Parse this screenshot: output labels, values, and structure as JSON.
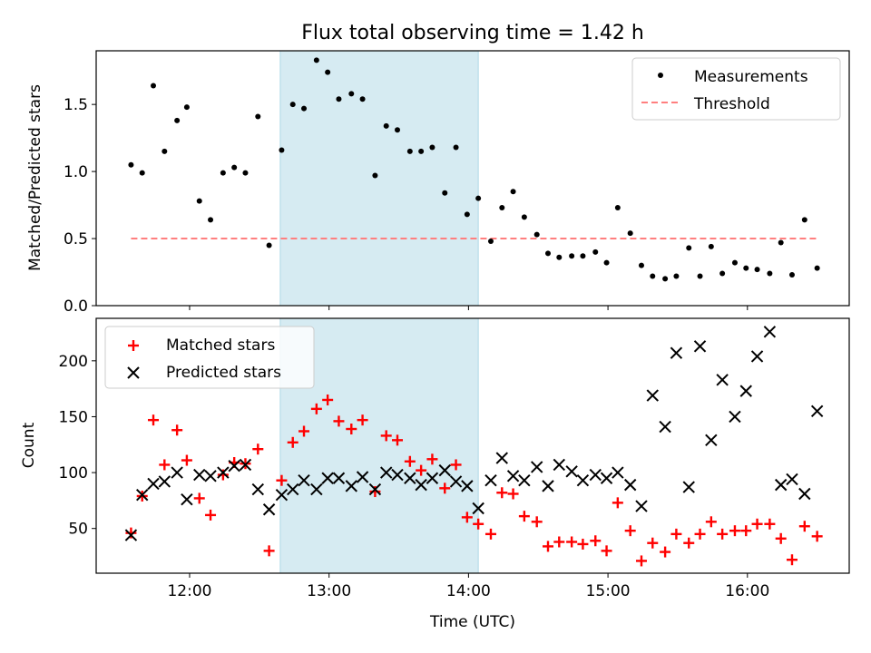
{
  "figure": {
    "title": "Flux total observing time = 1.42 h",
    "xlabel": "Time (UTC)"
  },
  "colors": {
    "shade": "#add8e6",
    "measurements": "#000000",
    "threshold": "#ff7f7f",
    "matched": "#ff0000",
    "predicted": "#000000"
  },
  "chart_data": [
    {
      "type": "scatter",
      "ylabel": "Matched/Predicted stars",
      "x_unit": "hours UTC",
      "xlim": [
        11.33,
        16.73
      ],
      "ylim": [
        0,
        1.9
      ],
      "yticks": [
        0.0,
        0.5,
        1.0,
        1.5
      ],
      "ytick_labels": [
        "0.0",
        "0.5",
        "1.0",
        "1.5"
      ],
      "xticks": [
        12,
        13,
        14,
        15,
        16
      ],
      "xtick_labels": [
        "",
        "",
        "",
        "",
        ""
      ],
      "shaded_span": [
        12.65,
        14.07
      ],
      "legend": {
        "placement": "upper right",
        "entries": [
          {
            "label": "Measurements",
            "marker": "dot"
          },
          {
            "label": "Threshold",
            "marker": "dashed-line"
          }
        ]
      },
      "threshold": {
        "y": 0.5,
        "x": [
          11.58,
          16.5
        ]
      },
      "series": [
        {
          "name": "Measurements",
          "points": [
            [
              11.58,
              1.05
            ],
            [
              11.66,
              0.99
            ],
            [
              11.74,
              1.64
            ],
            [
              11.82,
              1.15
            ],
            [
              11.91,
              1.38
            ],
            [
              11.98,
              1.48
            ],
            [
              12.07,
              0.78
            ],
            [
              12.15,
              0.64
            ],
            [
              12.24,
              0.99
            ],
            [
              12.32,
              1.03
            ],
            [
              12.4,
              0.99
            ],
            [
              12.49,
              1.41
            ],
            [
              12.57,
              0.45
            ],
            [
              12.66,
              1.16
            ],
            [
              12.74,
              1.5
            ],
            [
              12.82,
              1.47
            ],
            [
              12.91,
              1.83
            ],
            [
              12.99,
              1.74
            ],
            [
              13.07,
              1.54
            ],
            [
              13.16,
              1.58
            ],
            [
              13.24,
              1.54
            ],
            [
              13.33,
              0.97
            ],
            [
              13.41,
              1.34
            ],
            [
              13.49,
              1.31
            ],
            [
              13.58,
              1.15
            ],
            [
              13.66,
              1.15
            ],
            [
              13.74,
              1.18
            ],
            [
              13.83,
              0.84
            ],
            [
              13.91,
              1.18
            ],
            [
              13.99,
              0.68
            ],
            [
              14.07,
              0.8
            ],
            [
              14.16,
              0.48
            ],
            [
              14.24,
              0.73
            ],
            [
              14.32,
              0.85
            ],
            [
              14.4,
              0.66
            ],
            [
              14.49,
              0.53
            ],
            [
              14.57,
              0.39
            ],
            [
              14.65,
              0.36
            ],
            [
              14.74,
              0.37
            ],
            [
              14.82,
              0.37
            ],
            [
              14.91,
              0.4
            ],
            [
              14.99,
              0.32
            ],
            [
              15.07,
              0.73
            ],
            [
              15.16,
              0.54
            ],
            [
              15.24,
              0.3
            ],
            [
              15.32,
              0.22
            ],
            [
              15.41,
              0.2
            ],
            [
              15.49,
              0.22
            ],
            [
              15.58,
              0.43
            ],
            [
              15.66,
              0.22
            ],
            [
              15.74,
              0.44
            ],
            [
              15.82,
              0.24
            ],
            [
              15.91,
              0.32
            ],
            [
              15.99,
              0.28
            ],
            [
              16.07,
              0.27
            ],
            [
              16.16,
              0.24
            ],
            [
              16.24,
              0.47
            ],
            [
              16.32,
              0.23
            ],
            [
              16.41,
              0.64
            ],
            [
              16.5,
              0.28
            ]
          ]
        }
      ]
    },
    {
      "type": "scatter",
      "ylabel": "Count",
      "x_unit": "hours UTC",
      "xlim": [
        11.33,
        16.73
      ],
      "ylim": [
        10,
        238
      ],
      "yticks": [
        50,
        100,
        150,
        200
      ],
      "ytick_labels": [
        "50",
        "100",
        "150",
        "200"
      ],
      "xticks": [
        12,
        13,
        14,
        15,
        16
      ],
      "xtick_labels": [
        "12:00",
        "13:00",
        "14:00",
        "15:00",
        "16:00"
      ],
      "shaded_span": [
        12.65,
        14.07
      ],
      "legend": {
        "placement": "upper left",
        "entries": [
          {
            "label": "Matched stars",
            "marker": "plus"
          },
          {
            "label": "Predicted stars",
            "marker": "x"
          }
        ]
      },
      "series": [
        {
          "name": "Matched stars",
          "points": [
            [
              11.58,
              46
            ],
            [
              11.66,
              79
            ],
            [
              11.74,
              147
            ],
            [
              11.82,
              107
            ],
            [
              11.91,
              138
            ],
            [
              11.98,
              111
            ],
            [
              12.07,
              77
            ],
            [
              12.15,
              62
            ],
            [
              12.24,
              98
            ],
            [
              12.32,
              109
            ],
            [
              12.4,
              108
            ],
            [
              12.49,
              121
            ],
            [
              12.57,
              30
            ],
            [
              12.66,
              93
            ],
            [
              12.74,
              127
            ],
            [
              12.82,
              137
            ],
            [
              12.91,
              157
            ],
            [
              12.99,
              165
            ],
            [
              13.07,
              146
            ],
            [
              13.16,
              139
            ],
            [
              13.24,
              147
            ],
            [
              13.33,
              83
            ],
            [
              13.41,
              133
            ],
            [
              13.49,
              129
            ],
            [
              13.58,
              110
            ],
            [
              13.66,
              102
            ],
            [
              13.74,
              112
            ],
            [
              13.83,
              86
            ],
            [
              13.91,
              107
            ],
            [
              13.99,
              60
            ],
            [
              14.07,
              54
            ],
            [
              14.16,
              45
            ],
            [
              14.24,
              82
            ],
            [
              14.32,
              81
            ],
            [
              14.4,
              61
            ],
            [
              14.49,
              56
            ],
            [
              14.57,
              34
            ],
            [
              14.65,
              38
            ],
            [
              14.74,
              38
            ],
            [
              14.82,
              36
            ],
            [
              14.91,
              39
            ],
            [
              14.99,
              30
            ],
            [
              15.07,
              73
            ],
            [
              15.16,
              48
            ],
            [
              15.24,
              21
            ],
            [
              15.32,
              37
            ],
            [
              15.41,
              29
            ],
            [
              15.49,
              45
            ],
            [
              15.58,
              37
            ],
            [
              15.66,
              45
            ],
            [
              15.74,
              56
            ],
            [
              15.82,
              45
            ],
            [
              15.91,
              48
            ],
            [
              15.99,
              48
            ],
            [
              16.07,
              54
            ],
            [
              16.16,
              54
            ],
            [
              16.24,
              41
            ],
            [
              16.32,
              22
            ],
            [
              16.41,
              52
            ],
            [
              16.5,
              43
            ]
          ]
        },
        {
          "name": "Predicted stars",
          "points": [
            [
              11.58,
              44
            ],
            [
              11.66,
              80
            ],
            [
              11.74,
              90
            ],
            [
              11.82,
              92
            ],
            [
              11.91,
              100
            ],
            [
              11.98,
              76
            ],
            [
              12.07,
              98
            ],
            [
              12.15,
              97
            ],
            [
              12.24,
              100
            ],
            [
              12.32,
              106
            ],
            [
              12.4,
              107
            ],
            [
              12.49,
              85
            ],
            [
              12.57,
              67
            ],
            [
              12.66,
              80
            ],
            [
              12.74,
              85
            ],
            [
              12.82,
              93
            ],
            [
              12.91,
              85
            ],
            [
              12.99,
              95
            ],
            [
              13.07,
              95
            ],
            [
              13.16,
              88
            ],
            [
              13.24,
              96
            ],
            [
              13.33,
              85
            ],
            [
              13.41,
              100
            ],
            [
              13.49,
              98
            ],
            [
              13.58,
              95
            ],
            [
              13.66,
              89
            ],
            [
              13.74,
              95
            ],
            [
              13.83,
              102
            ],
            [
              13.91,
              92
            ],
            [
              13.99,
              88
            ],
            [
              14.07,
              68
            ],
            [
              14.16,
              93
            ],
            [
              14.24,
              113
            ],
            [
              14.32,
              97
            ],
            [
              14.4,
              93
            ],
            [
              14.49,
              105
            ],
            [
              14.57,
              88
            ],
            [
              14.65,
              107
            ],
            [
              14.74,
              101
            ],
            [
              14.82,
              93
            ],
            [
              14.91,
              98
            ],
            [
              14.99,
              95
            ],
            [
              15.07,
              100
            ],
            [
              15.16,
              89
            ],
            [
              15.24,
              70
            ],
            [
              15.32,
              169
            ],
            [
              15.41,
              141
            ],
            [
              15.49,
              207
            ],
            [
              15.58,
              87
            ],
            [
              15.66,
              213
            ],
            [
              15.74,
              129
            ],
            [
              15.82,
              183
            ],
            [
              15.91,
              150
            ],
            [
              15.99,
              173
            ],
            [
              16.07,
              204
            ],
            [
              16.16,
              226
            ],
            [
              16.24,
              89
            ],
            [
              16.32,
              94
            ],
            [
              16.41,
              81
            ],
            [
              16.5,
              155
            ]
          ]
        }
      ]
    }
  ]
}
